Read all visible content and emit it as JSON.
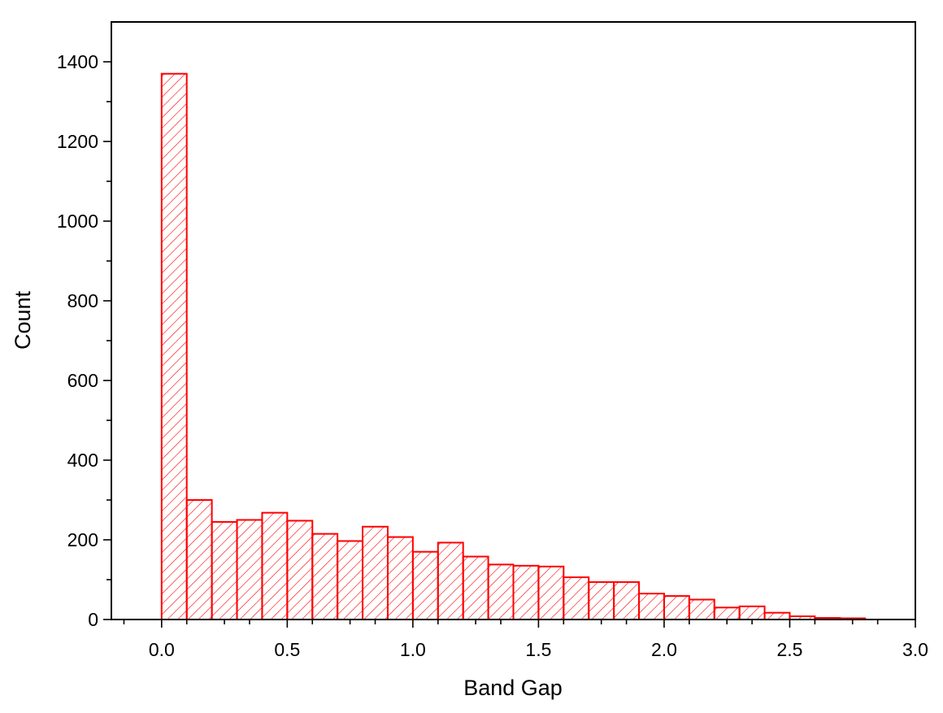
{
  "chart_data": {
    "type": "bar",
    "title": "",
    "xlabel": "Band Gap",
    "ylabel": "Count",
    "xlim": [
      -0.2,
      3.0
    ],
    "ylim": [
      0,
      1500
    ],
    "x_ticks": [
      "0.0",
      "0.5",
      "1.0",
      "1.5",
      "2.0",
      "2.5",
      "3.0"
    ],
    "y_ticks": [
      "0",
      "200",
      "400",
      "600",
      "800",
      "1000",
      "1200",
      "1400"
    ],
    "bin_width": 0.1,
    "bin_starts": [
      0.0,
      0.1,
      0.2,
      0.3,
      0.4,
      0.5,
      0.6,
      0.7,
      0.8,
      0.9,
      1.0,
      1.1,
      1.2,
      1.3,
      1.4,
      1.5,
      1.6,
      1.7,
      1.8,
      1.9,
      2.0,
      2.1,
      2.2,
      2.3,
      2.4,
      2.5,
      2.6,
      2.7
    ],
    "values": [
      1370,
      300,
      245,
      250,
      268,
      248,
      215,
      197,
      233,
      207,
      170,
      193,
      158,
      138,
      135,
      133,
      106,
      94,
      94,
      65,
      59,
      50,
      30,
      33,
      17,
      8,
      4,
      3
    ],
    "bar_fill": "hatched",
    "bar_color": "#ff0000",
    "grid": false,
    "legend": "none"
  }
}
